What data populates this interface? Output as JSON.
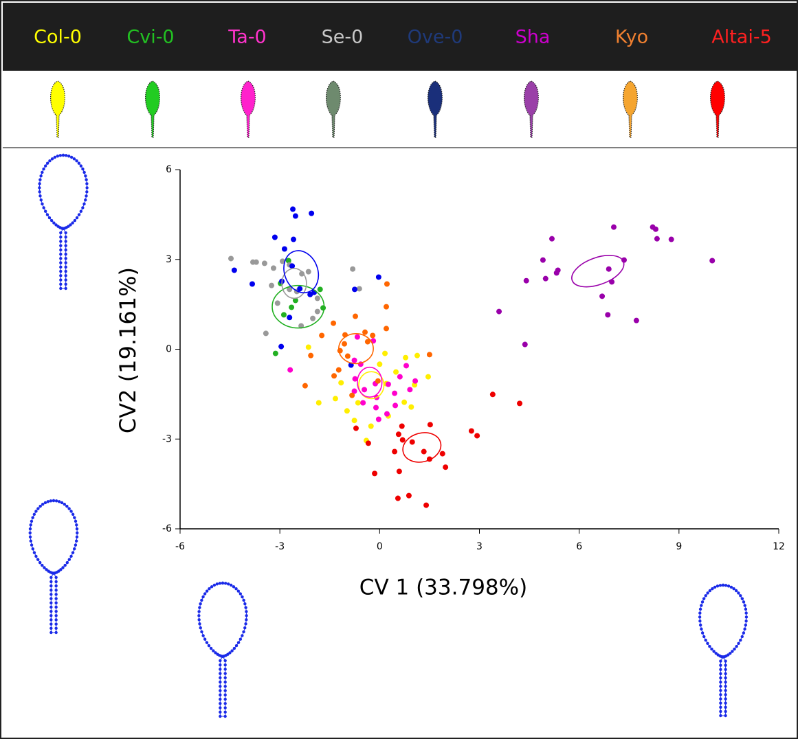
{
  "chart_data": {
    "type": "scatter",
    "xlabel": "CV 1 (33.798%)",
    "ylabel": "CV2 (19.161%)",
    "xlim": [
      -6,
      12
    ],
    "ylim": [
      -6,
      6
    ],
    "xticks": [
      -6,
      -3,
      0,
      3,
      6,
      9,
      12
    ],
    "yticks": [
      -6,
      -3,
      0,
      3,
      6
    ],
    "series": [
      {
        "name": "Col-0",
        "color": "#ffee00",
        "label_color": "#ffff00",
        "icon_color": "#ffff00",
        "x": [
          0.78,
          1.13,
          1.46,
          1.05,
          0.74,
          0.95,
          0.26,
          -0.26,
          -0.4,
          -0.98,
          -0.76,
          -0.65,
          -1.33,
          -1.16,
          -1.83,
          0.2,
          0.49,
          0,
          -2.14,
          0.16
        ],
        "y": [
          -0.28,
          -0.21,
          -0.92,
          -1.19,
          -1.77,
          -1.93,
          -2.23,
          -2.57,
          -3.05,
          -2.06,
          -2.38,
          -1.79,
          -1.65,
          -1.12,
          -1.79,
          -1.15,
          -0.76,
          -0.5,
          0.07,
          -0.14
        ],
        "ellipse": {
          "cx": -0.25,
          "cy": -1.2,
          "rx": 0.38,
          "ry": 0.45,
          "angle": 0
        }
      },
      {
        "name": "Cvi-0",
        "color": "#22b022",
        "label_color": "#22c022",
        "icon_color": "#22cc22",
        "x": [
          -2.74,
          -2.98,
          -2.65,
          -2.88,
          -3.13,
          -1.79,
          -1.7,
          -2.53
        ],
        "y": [
          2.96,
          2.2,
          1.4,
          1.15,
          -0.14,
          2.0,
          1.38,
          1.63
        ],
        "ellipse": {
          "cx": -2.45,
          "cy": 1.42,
          "rx": 0.78,
          "ry": 0.71,
          "angle": 0
        }
      },
      {
        "name": "Ta-0",
        "color": "#ff00cc",
        "label_color": "#ff33cc",
        "icon_color": "#ff22cc",
        "x": [
          -2.69,
          -0.67,
          -0.19,
          -0.76,
          -0.57,
          -0.74,
          -0.46,
          -0.13,
          0.26,
          0.45,
          0.91,
          1.07,
          0.8,
          0.61,
          -0.09,
          -0.11,
          0.22,
          0.47,
          -0.03,
          -0.76,
          -0.5
        ],
        "y": [
          -0.69,
          0.41,
          0.28,
          -0.37,
          -0.5,
          -0.99,
          -1.35,
          -1.15,
          -1.17,
          -1.47,
          -1.35,
          -1.06,
          -0.55,
          -0.92,
          -1.61,
          -1.95,
          -2.16,
          -1.88,
          -2.34,
          -1.4,
          -1.79
        ],
        "ellipse": {
          "cx": -0.3,
          "cy": -1.1,
          "rx": 0.37,
          "ry": 0.5,
          "angle": 0
        }
      },
      {
        "name": "Se-0",
        "color": "#999999",
        "label_color": "#c8c8c8",
        "icon_color": "#6e8a6e",
        "x": [
          -4.47,
          -3.81,
          -3.71,
          -3.46,
          -3.19,
          -2.92,
          -2.71,
          -2.34,
          -2.14,
          -2.71,
          -2.49,
          -1.87,
          -3.42,
          -2.36,
          -2.01,
          -1.87,
          -0.81,
          -0.61,
          -3.25,
          -3.07
        ],
        "y": [
          3.03,
          2.91,
          2.91,
          2.87,
          2.71,
          2.94,
          2.82,
          2.52,
          2.59,
          2.0,
          1.93,
          1.7,
          0.53,
          0.78,
          1.03,
          1.26,
          2.68,
          2.02,
          2.13,
          1.54
        ],
        "ellipse": {
          "cx": -2.57,
          "cy": 2.2,
          "rx": 0.37,
          "ry": 0.5,
          "angle": 0
        }
      },
      {
        "name": "Ove-0",
        "color": "#0000ee",
        "label_color": "#1f3a7a",
        "icon_color": "#1a2f7a",
        "x": [
          -2.61,
          -2.53,
          -2.05,
          -3.15,
          -2.59,
          -2.86,
          -4.37,
          -3.83,
          -2.94,
          -2.4,
          -2.09,
          -1.97,
          -0.75,
          -0.03,
          -2.96,
          -2.71,
          -0.86,
          -2.63
        ],
        "y": [
          4.68,
          4.45,
          4.54,
          3.74,
          3.67,
          3.35,
          2.64,
          2.18,
          2.27,
          2.02,
          1.83,
          1.9,
          2.0,
          2.41,
          0.09,
          1.06,
          -0.53,
          2.78
        ],
        "ellipse": {
          "cx": -2.36,
          "cy": 2.59,
          "rx": 0.5,
          "ry": 0.72,
          "angle": -20
        }
      },
      {
        "name": "Sha",
        "color": "#9900aa",
        "label_color": "#cc00cc",
        "icon_color": "#9a40a8",
        "x": [
          10.0,
          7.04,
          8.21,
          8.3,
          8.34,
          8.77,
          5.18,
          4.91,
          4.99,
          5.32,
          5.36,
          4.41,
          3.59,
          4.37,
          6.69,
          6.86,
          7.72,
          7.35,
          6.98,
          6.89
        ],
        "y": [
          2.96,
          4.08,
          4.08,
          4.01,
          3.69,
          3.67,
          3.69,
          2.98,
          2.36,
          2.55,
          2.64,
          2.29,
          1.26,
          0.16,
          1.77,
          1.15,
          0.96,
          2.98,
          2.25,
          2.68
        ],
        "ellipse": {
          "cx": 6.56,
          "cy": 2.61,
          "rx": 0.82,
          "ry": 0.45,
          "angle": -20
        }
      },
      {
        "name": "Kyo",
        "color": "#ff6600",
        "label_color": "#f08030",
        "icon_color": "#f5a530",
        "x": [
          0.22,
          0.2,
          -1.39,
          -1.74,
          -1.04,
          -0.73,
          -0.44,
          -0.21,
          -1.06,
          -1.19,
          -2.07,
          -0.96,
          -1.23,
          -1.37,
          -2.24,
          1.5,
          0.2,
          -0.83,
          -0.05,
          -0.36
        ],
        "y": [
          2.18,
          1.42,
          0.87,
          0.46,
          0.48,
          1.1,
          0.57,
          0.46,
          0.18,
          -0.05,
          -0.21,
          -0.23,
          -0.69,
          -0.89,
          -1.22,
          -0.18,
          0.69,
          -1.54,
          -1.06,
          0.25
        ],
        "ellipse": {
          "cx": -0.71,
          "cy": 0.02,
          "rx": 0.52,
          "ry": 0.5,
          "angle": 0
        }
      },
      {
        "name": "Altai-5",
        "color": "#ee0000",
        "label_color": "#ff2020",
        "icon_color": "#ff0000",
        "x": [
          1.52,
          0.67,
          0.57,
          0.69,
          0.98,
          1.33,
          1.5,
          0.45,
          1.89,
          1.98,
          0.59,
          -0.15,
          0.55,
          0.88,
          1.4,
          -0.34,
          -0.71,
          2.76,
          2.93,
          3.4,
          4.21
        ],
        "y": [
          -2.52,
          -2.57,
          -2.84,
          -3.03,
          -3.1,
          -3.42,
          -3.67,
          -3.42,
          -3.49,
          -3.94,
          -4.08,
          -4.15,
          -4.98,
          -4.89,
          -5.21,
          -3.14,
          -2.64,
          -2.73,
          -2.89,
          -1.51,
          -1.81
        ],
        "ellipse": {
          "cx": 1.27,
          "cy": -3.28,
          "rx": 0.58,
          "ry": 0.48,
          "angle": -15
        }
      }
    ]
  }
}
